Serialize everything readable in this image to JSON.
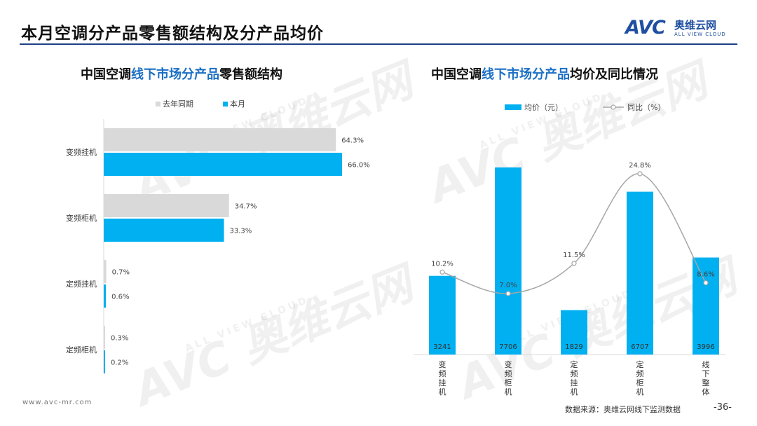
{
  "header": {
    "page_title": "本月空调分产品零售额结构及分产品均价",
    "logo_main": "AVC",
    "logo_cn": "奥维云网",
    "logo_en": "ALL VIEW CLOUD"
  },
  "footer": {
    "url": "www.avc-mr.com",
    "source": "数据来源：奥维云网线下监测数据",
    "page": "-36-"
  },
  "colors": {
    "accent": "#1f3f86",
    "bar_current": "#00b0f0",
    "bar_last": "#d9d9d9",
    "line": "#a6a6a6",
    "title_highlight": "#1a6fc4"
  },
  "chart_data": [
    {
      "type": "bar",
      "orientation": "horizontal",
      "title_parts": [
        "中国空调",
        "线下市场分产品",
        "零售额结构"
      ],
      "categories": [
        "变频挂机",
        "变频柜机",
        "定频挂机",
        "定频柜机"
      ],
      "series": [
        {
          "name": "去年同期",
          "values": [
            64.3,
            34.7,
            0.7,
            0.3
          ],
          "labels": [
            "64.3%",
            "34.7%",
            "0.7%",
            "0.3%"
          ]
        },
        {
          "name": "本月",
          "values": [
            66.0,
            33.3,
            0.6,
            0.2
          ],
          "labels": [
            "66.0%",
            "33.3%",
            "0.6%",
            "0.2%"
          ]
        }
      ],
      "legend": "top",
      "grid": false
    },
    {
      "type": "bar+line",
      "title_parts": [
        "中国空调",
        "线下市场分产品",
        "均价及同比情况"
      ],
      "categories": [
        "变频挂机",
        "变频柜机",
        "定频挂机",
        "定频柜机",
        "线下整体"
      ],
      "bar_series": {
        "name": "均价（元）",
        "values": [
          3241,
          7706,
          1829,
          6707,
          3996
        ],
        "labels": [
          "3241",
          "7706",
          "1829",
          "6707",
          "3996"
        ]
      },
      "line_series": {
        "name": "同比（%）",
        "values": [
          10.2,
          7.0,
          11.5,
          24.8,
          8.6
        ],
        "labels": [
          "10.2%",
          "7.0%",
          "11.5%",
          "24.8%",
          "8.6%"
        ]
      },
      "legend": "top",
      "grid": false
    }
  ]
}
